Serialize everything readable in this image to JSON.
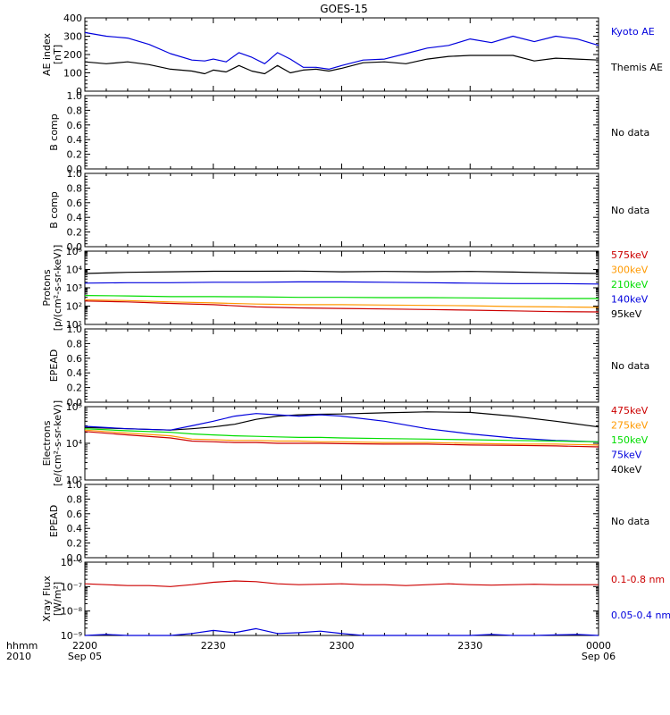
{
  "title": "GOES-15",
  "time_label": "hhmm",
  "year_label": "2010",
  "x_ticks": [
    {
      "label": "2200",
      "sub": "Sep 05"
    },
    {
      "label": "2230",
      "sub": ""
    },
    {
      "label": "2300",
      "sub": ""
    },
    {
      "label": "2330",
      "sub": ""
    },
    {
      "label": "0000",
      "sub": "Sep 06"
    }
  ],
  "colors": {
    "black": "#000000",
    "blue": "#0000dd",
    "red": "#cc0000",
    "orange": "#ff9900",
    "green": "#00dd00",
    "axis": "#000000"
  },
  "chart_data": [
    {
      "type": "line",
      "ylabel": "AE index",
      "yunits": "[nT]",
      "ylim": [
        0,
        400
      ],
      "yticks": [
        "0",
        "100",
        "200",
        "300",
        "400"
      ],
      "scale": "linear",
      "x_minutes": [
        0,
        5,
        10,
        15,
        20,
        25,
        28,
        30,
        33,
        36,
        39,
        42,
        45,
        48,
        51,
        54,
        57,
        60,
        65,
        70,
        75,
        80,
        85,
        90,
        95,
        100,
        105,
        110,
        115,
        120
      ],
      "series": [
        {
          "name": "Kyoto AE",
          "color": "blue",
          "values": [
            320,
            300,
            290,
            255,
            205,
            170,
            165,
            175,
            160,
            210,
            185,
            150,
            210,
            175,
            130,
            130,
            120,
            140,
            170,
            175,
            205,
            235,
            250,
            285,
            265,
            300,
            270,
            300,
            285,
            250
          ]
        },
        {
          "name": "Themis AE",
          "color": "black",
          "values": [
            160,
            150,
            160,
            145,
            120,
            110,
            95,
            115,
            105,
            140,
            110,
            95,
            140,
            100,
            115,
            120,
            110,
            125,
            155,
            160,
            150,
            175,
            190,
            195,
            195,
            195,
            165,
            180,
            175,
            170
          ]
        }
      ],
      "legend": [
        {
          "text": "Kyoto AE",
          "color": "blue"
        },
        {
          "text": "Themis AE",
          "color": "black"
        }
      ],
      "nodata": ""
    },
    {
      "type": "line",
      "ylabel": "B comp",
      "yunits": "",
      "ylim": [
        0,
        1
      ],
      "yticks": [
        "0.0",
        "0.2",
        "0.4",
        "0.6",
        "0.8",
        "1.0"
      ],
      "scale": "linear",
      "series": [],
      "legend": [],
      "nodata": "No data"
    },
    {
      "type": "line",
      "ylabel": "B comp",
      "yunits": "",
      "ylim": [
        0,
        1
      ],
      "yticks": [
        "0.0",
        "0.2",
        "0.4",
        "0.6",
        "0.8",
        "1.0"
      ],
      "scale": "linear",
      "series": [],
      "legend": [],
      "nodata": "No data"
    },
    {
      "type": "line",
      "ylabel": "Protons",
      "yunits": "[p/(cm²-s-sr-keV)]",
      "ylim": [
        10,
        100000
      ],
      "yticks": [
        "10¹",
        "10²",
        "10³",
        "10⁴",
        "10⁵"
      ],
      "scale": "log",
      "x_minutes": [
        0,
        10,
        20,
        30,
        40,
        50,
        60,
        70,
        80,
        90,
        100,
        110,
        120
      ],
      "series": [
        {
          "name": "95keV",
          "color": "black",
          "values": [
            6000,
            7000,
            7500,
            8000,
            8000,
            8200,
            7500,
            7800,
            7500,
            7800,
            7200,
            6500,
            6000
          ]
        },
        {
          "name": "140keV",
          "color": "blue",
          "values": [
            1800,
            1900,
            1900,
            2000,
            2000,
            2100,
            2100,
            2000,
            1900,
            1800,
            1700,
            1700,
            1600
          ]
        },
        {
          "name": "210keV",
          "color": "green",
          "values": [
            380,
            360,
            330,
            330,
            320,
            300,
            300,
            290,
            290,
            280,
            270,
            260,
            260
          ]
        },
        {
          "name": "300keV",
          "color": "orange",
          "values": [
            220,
            200,
            170,
            150,
            130,
            120,
            120,
            115,
            110,
            105,
            95,
            90,
            85
          ]
        },
        {
          "name": "575keV",
          "color": "red",
          "values": [
            190,
            170,
            140,
            120,
            90,
            80,
            75,
            70,
            65,
            60,
            55,
            50,
            48
          ]
        }
      ],
      "legend": [
        {
          "text": "575keV",
          "color": "red"
        },
        {
          "text": "300keV",
          "color": "orange"
        },
        {
          "text": "210keV",
          "color": "green"
        },
        {
          "text": "140keV",
          "color": "blue"
        },
        {
          "text": "95keV",
          "color": "black"
        }
      ],
      "nodata": ""
    },
    {
      "type": "line",
      "ylabel": "EPEAD",
      "yunits": "",
      "ylim": [
        0,
        1
      ],
      "yticks": [
        "0.0",
        "0.2",
        "0.4",
        "0.6",
        "0.8",
        "1.0"
      ],
      "scale": "linear",
      "series": [],
      "legend": [],
      "nodata": "No data"
    },
    {
      "type": "line",
      "ylabel": "Electrons",
      "yunits": "[e/(cm²-s-sr-keV)]",
      "ylim": [
        1000,
        100000
      ],
      "yticks": [
        "10³",
        "10⁴",
        "10⁵"
      ],
      "scale": "log",
      "x_minutes": [
        0,
        10,
        20,
        25,
        30,
        35,
        40,
        45,
        50,
        55,
        60,
        70,
        80,
        90,
        100,
        110,
        120
      ],
      "series": [
        {
          "name": "40keV",
          "color": "black",
          "values": [
            27000,
            25000,
            23000,
            25000,
            28000,
            33000,
            45000,
            55000,
            60000,
            62000,
            63000,
            68000,
            72000,
            70000,
            55000,
            40000,
            28000
          ]
        },
        {
          "name": "75keV",
          "color": "blue",
          "values": [
            29000,
            25000,
            23000,
            30000,
            40000,
            55000,
            65000,
            60000,
            55000,
            60000,
            55000,
            40000,
            25000,
            18000,
            14000,
            12000,
            11000
          ]
        },
        {
          "name": "150keV",
          "color": "green",
          "values": [
            25000,
            22000,
            20000,
            18000,
            17000,
            16000,
            15500,
            15000,
            14500,
            14500,
            14000,
            13500,
            13000,
            12500,
            12000,
            11500,
            11000
          ]
        },
        {
          "name": "275keV",
          "color": "orange",
          "values": [
            23000,
            19000,
            16000,
            13000,
            12500,
            12000,
            12000,
            11500,
            11500,
            11000,
            11000,
            10500,
            10500,
            10000,
            9500,
            9500,
            9000
          ]
        },
        {
          "name": "475keV",
          "color": "red",
          "values": [
            21000,
            17000,
            14000,
            11500,
            11000,
            10500,
            10500,
            10000,
            10000,
            10000,
            9800,
            9500,
            9500,
            9000,
            8800,
            8500,
            8000
          ]
        }
      ],
      "legend": [
        {
          "text": "475keV",
          "color": "red"
        },
        {
          "text": "275keV",
          "color": "orange"
        },
        {
          "text": "150keV",
          "color": "green"
        },
        {
          "text": "75keV",
          "color": "blue"
        },
        {
          "text": "40keV",
          "color": "black"
        }
      ],
      "nodata": ""
    },
    {
      "type": "line",
      "ylabel": "EPEAD",
      "yunits": "",
      "ylim": [
        0,
        1
      ],
      "yticks": [
        "0.0",
        "0.2",
        "0.4",
        "0.6",
        "0.8",
        "1.0"
      ],
      "scale": "linear",
      "series": [],
      "legend": [],
      "nodata": "No data"
    },
    {
      "type": "line",
      "ylabel": "Xray Flux",
      "yunits": "[W/m²]",
      "ylim": [
        1e-09,
        1e-06
      ],
      "yticks": [
        "10⁻⁹",
        "10⁻⁸",
        "10⁻⁷",
        "10⁻⁶"
      ],
      "scale": "log",
      "x_minutes": [
        0,
        5,
        10,
        15,
        20,
        25,
        30,
        35,
        40,
        45,
        50,
        55,
        60,
        65,
        70,
        75,
        80,
        85,
        90,
        95,
        100,
        105,
        110,
        115,
        120
      ],
      "series": [
        {
          "name": "0.1-0.8 nm",
          "color": "red",
          "values": [
            1.3e-07,
            1.2e-07,
            1.1e-07,
            1.1e-07,
            1e-07,
            1.2e-07,
            1.5e-07,
            1.7e-07,
            1.6e-07,
            1.3e-07,
            1.2e-07,
            1.25e-07,
            1.3e-07,
            1.2e-07,
            1.2e-07,
            1.1e-07,
            1.2e-07,
            1.3e-07,
            1.2e-07,
            1.15e-07,
            1.2e-07,
            1.25e-07,
            1.2e-07,
            1.2e-07,
            1.2e-07
          ]
        },
        {
          "name": "0.05-0.4 nm",
          "color": "blue",
          "values": [
            1e-09,
            1.1e-09,
            1e-09,
            1e-09,
            1e-09,
            1.2e-09,
            1.6e-09,
            1.3e-09,
            1.9e-09,
            1.2e-09,
            1.3e-09,
            1.5e-09,
            1.2e-09,
            1e-09,
            1e-09,
            1e-09,
            1e-09,
            1e-09,
            1e-09,
            1.1e-09,
            1e-09,
            1e-09,
            1.05e-09,
            1.1e-09,
            1e-09
          ]
        }
      ],
      "legend": [
        {
          "text": "0.1-0.8 nm",
          "color": "red"
        },
        {
          "text": "0.05-0.4 nm",
          "color": "blue"
        }
      ],
      "nodata": ""
    }
  ]
}
